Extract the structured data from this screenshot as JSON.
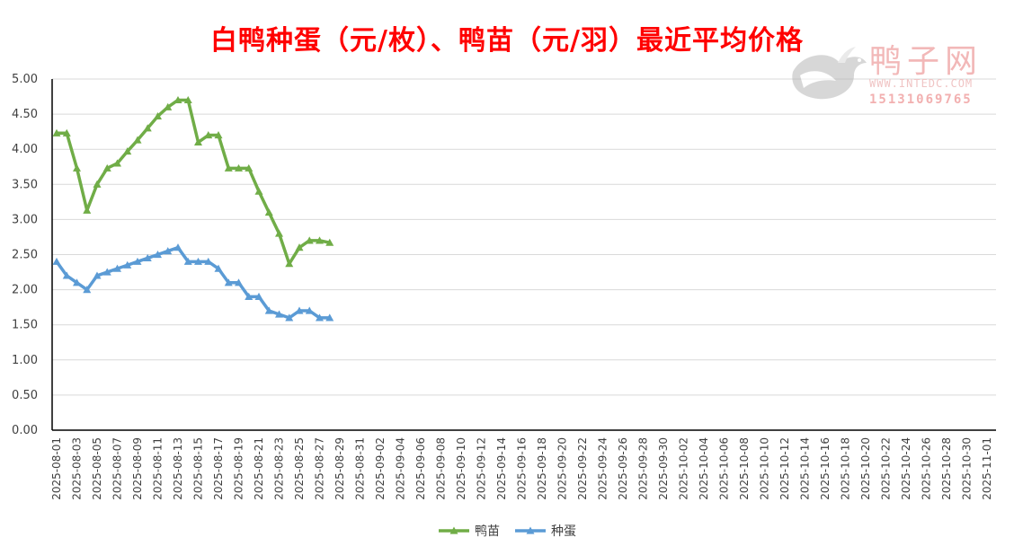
{
  "chart_data": {
    "type": "line",
    "title": "白鸭种蛋（元/枚）、鸭苗（元/羽）最近平均价格",
    "xlabel": "",
    "ylabel": "",
    "ylim": [
      0,
      5
    ],
    "yticks": [
      "0.00",
      "0.50",
      "1.00",
      "1.50",
      "2.00",
      "2.50",
      "3.00",
      "3.50",
      "4.00",
      "4.50",
      "5.00"
    ],
    "x_range": [
      "2025-08-01",
      "2025-11-01"
    ],
    "x_tick_labels": [
      "2025-08-01",
      "2025-08-03",
      "2025-08-05",
      "2025-08-07",
      "2025-08-09",
      "2025-08-11",
      "2025-08-13",
      "2025-08-15",
      "2025-08-17",
      "2025-08-19",
      "2025-08-21",
      "2025-08-23",
      "2025-08-25",
      "2025-08-27",
      "2025-08-29",
      "2025-08-31",
      "2025-09-02",
      "2025-09-04",
      "2025-09-06",
      "2025-09-08",
      "2025-09-10",
      "2025-09-12",
      "2025-09-14",
      "2025-09-16",
      "2025-09-18",
      "2025-09-20",
      "2025-09-22",
      "2025-09-24",
      "2025-09-26",
      "2025-09-28",
      "2025-09-30",
      "2025-10-02",
      "2025-10-04",
      "2025-10-06",
      "2025-10-08",
      "2025-10-10",
      "2025-10-12",
      "2025-10-14",
      "2025-10-16",
      "2025-10-18",
      "2025-10-20",
      "2025-10-22",
      "2025-10-24",
      "2025-10-26",
      "2025-10-28",
      "2025-10-30",
      "2025-11-01"
    ],
    "grid": true,
    "legend_position": "bottom",
    "series": [
      {
        "name": "鸭苗",
        "color": "#70ad47",
        "marker": "triangle",
        "x": [
          "2025-08-01",
          "2025-08-02",
          "2025-08-03",
          "2025-08-04",
          "2025-08-05",
          "2025-08-06",
          "2025-08-07",
          "2025-08-08",
          "2025-08-09",
          "2025-08-10",
          "2025-08-11",
          "2025-08-12",
          "2025-08-13",
          "2025-08-14",
          "2025-08-15",
          "2025-08-16",
          "2025-08-17",
          "2025-08-18",
          "2025-08-19",
          "2025-08-20",
          "2025-08-21",
          "2025-08-22",
          "2025-08-23",
          "2025-08-24",
          "2025-08-25",
          "2025-08-26",
          "2025-08-27",
          "2025-08-28"
        ],
        "values": [
          4.23,
          4.23,
          3.73,
          3.13,
          3.5,
          3.73,
          3.8,
          3.97,
          4.13,
          4.3,
          4.47,
          4.6,
          4.7,
          4.7,
          4.1,
          4.2,
          4.2,
          3.73,
          3.73,
          3.73,
          3.4,
          3.1,
          2.8,
          2.37,
          2.6,
          2.7,
          2.7,
          2.67
        ]
      },
      {
        "name": "种蛋",
        "color": "#5b9bd5",
        "marker": "triangle",
        "x": [
          "2025-08-01",
          "2025-08-02",
          "2025-08-03",
          "2025-08-04",
          "2025-08-05",
          "2025-08-06",
          "2025-08-07",
          "2025-08-08",
          "2025-08-09",
          "2025-08-10",
          "2025-08-11",
          "2025-08-12",
          "2025-08-13",
          "2025-08-14",
          "2025-08-15",
          "2025-08-16",
          "2025-08-17",
          "2025-08-18",
          "2025-08-19",
          "2025-08-20",
          "2025-08-21",
          "2025-08-22",
          "2025-08-23",
          "2025-08-24",
          "2025-08-25",
          "2025-08-26",
          "2025-08-27",
          "2025-08-28"
        ],
        "values": [
          2.4,
          2.2,
          2.1,
          2.0,
          2.2,
          2.25,
          2.3,
          2.35,
          2.4,
          2.45,
          2.5,
          2.55,
          2.6,
          2.4,
          2.4,
          2.4,
          2.3,
          2.1,
          2.1,
          1.9,
          1.9,
          1.7,
          1.65,
          1.6,
          1.7,
          1.7,
          1.6,
          1.6
        ]
      }
    ]
  },
  "watermark": {
    "name": "鸭子网",
    "site": "WWW.INTEDC.COM",
    "phone": "15131069765",
    "color": "#f2b8b8"
  }
}
